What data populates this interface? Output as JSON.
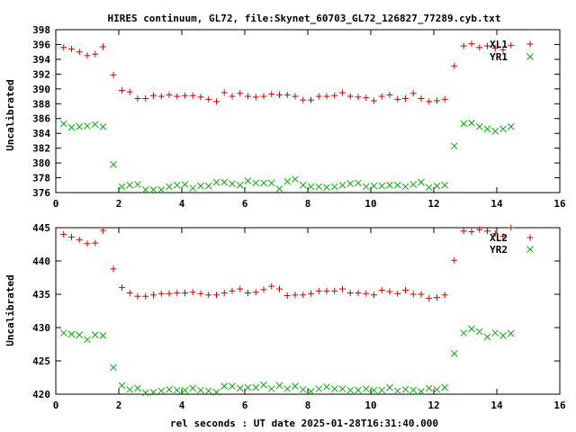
{
  "chart_data": [
    {
      "type": "scatter",
      "title": "HIRES continuum, GL72, file:Skynet_60703_GL72_126827_77289.cyb.txt",
      "xlabel": "",
      "ylabel": "Uncalibrated",
      "xlim": [
        0,
        16
      ],
      "ylim": [
        376,
        398
      ],
      "xticks": [
        0,
        2,
        4,
        6,
        8,
        10,
        12,
        14,
        16
      ],
      "yticks": [
        376,
        378,
        380,
        382,
        384,
        386,
        388,
        390,
        392,
        394,
        396,
        398
      ],
      "legend_position": "top-right",
      "grid": false,
      "series": [
        {
          "name": "XL1",
          "marker": "plus",
          "color": "#cc0000",
          "x": [
            0.25,
            0.5,
            0.75,
            1.0,
            1.25,
            1.5,
            1.83,
            2.1,
            2.35,
            2.6,
            2.85,
            3.1,
            3.35,
            3.6,
            3.85,
            4.1,
            4.35,
            4.6,
            4.85,
            5.1,
            5.35,
            5.6,
            5.85,
            6.1,
            6.35,
            6.6,
            6.85,
            7.1,
            7.35,
            7.6,
            7.85,
            8.1,
            8.35,
            8.6,
            8.85,
            9.1,
            9.35,
            9.6,
            9.85,
            10.1,
            10.35,
            10.6,
            10.85,
            11.1,
            11.35,
            11.6,
            11.85,
            12.1,
            12.35,
            12.65,
            12.95,
            13.2,
            13.45,
            13.7,
            13.95,
            14.2,
            14.45
          ],
          "y": [
            395.6,
            395.4,
            395.0,
            394.5,
            394.7,
            395.7,
            391.9,
            389.8,
            389.6,
            388.7,
            388.7,
            389.1,
            389.0,
            389.2,
            389.0,
            389.1,
            389.1,
            388.9,
            388.6,
            388.3,
            389.5,
            389.0,
            389.4,
            389.0,
            388.9,
            389.0,
            389.3,
            389.2,
            389.2,
            389.0,
            388.5,
            388.5,
            389.0,
            389.0,
            389.1,
            389.5,
            389.0,
            388.9,
            388.8,
            388.4,
            389.0,
            389.2,
            388.6,
            388.7,
            389.4,
            388.7,
            388.3,
            388.4,
            388.6,
            393.1,
            395.8,
            396.1,
            395.6,
            395.8,
            395.5,
            395.3,
            395.9
          ]
        },
        {
          "name": "YR1",
          "marker": "cross",
          "color": "#00aa00",
          "x": [
            0.25,
            0.5,
            0.75,
            1.0,
            1.25,
            1.5,
            1.83,
            2.1,
            2.35,
            2.6,
            2.85,
            3.1,
            3.35,
            3.6,
            3.85,
            4.1,
            4.35,
            4.6,
            4.85,
            5.1,
            5.35,
            5.6,
            5.85,
            6.1,
            6.35,
            6.6,
            6.85,
            7.1,
            7.35,
            7.6,
            7.85,
            8.1,
            8.35,
            8.6,
            8.85,
            9.1,
            9.35,
            9.6,
            9.85,
            10.1,
            10.35,
            10.6,
            10.85,
            11.1,
            11.35,
            11.6,
            11.85,
            12.1,
            12.35,
            12.65,
            12.95,
            13.2,
            13.45,
            13.7,
            13.95,
            14.2,
            14.45
          ],
          "y": [
            385.3,
            384.8,
            384.9,
            385.0,
            385.2,
            384.9,
            379.8,
            376.8,
            377.0,
            377.1,
            376.4,
            376.4,
            376.4,
            376.8,
            377.0,
            377.1,
            376.6,
            376.9,
            376.9,
            377.4,
            377.4,
            377.2,
            377.0,
            377.6,
            377.3,
            377.3,
            377.3,
            376.5,
            377.5,
            377.8,
            377.0,
            376.8,
            376.8,
            376.7,
            376.8,
            377.0,
            377.2,
            377.3,
            376.8,
            376.9,
            376.9,
            377.0,
            377.0,
            376.8,
            377.1,
            377.4,
            376.7,
            376.9,
            377.0,
            382.3,
            385.3,
            385.4,
            384.9,
            384.6,
            384.3,
            384.6,
            384.9
          ]
        }
      ]
    },
    {
      "type": "scatter",
      "title": "",
      "xlabel": "rel seconds : UT date 2025-01-28T16:31:40.000",
      "ylabel": "Uncalibrated",
      "xlim": [
        0,
        16
      ],
      "ylim": [
        420,
        445
      ],
      "xticks": [
        0,
        2,
        4,
        6,
        8,
        10,
        12,
        14,
        16
      ],
      "yticks": [
        420,
        425,
        430,
        435,
        440,
        445
      ],
      "legend_position": "top-right",
      "grid": false,
      "series": [
        {
          "name": "XL2",
          "marker": "plus",
          "color": "#cc0000",
          "x": [
            0.25,
            0.5,
            0.75,
            1.0,
            1.25,
            1.5,
            1.83,
            2.1,
            2.35,
            2.6,
            2.85,
            3.1,
            3.35,
            3.6,
            3.85,
            4.1,
            4.35,
            4.6,
            4.85,
            5.1,
            5.35,
            5.6,
            5.85,
            6.1,
            6.35,
            6.6,
            6.85,
            7.1,
            7.35,
            7.6,
            7.85,
            8.1,
            8.35,
            8.6,
            8.85,
            9.1,
            9.35,
            9.6,
            9.85,
            10.1,
            10.35,
            10.6,
            10.85,
            11.1,
            11.35,
            11.6,
            11.85,
            12.1,
            12.35,
            12.65,
            12.95,
            13.2,
            13.45,
            13.7,
            13.95,
            14.2,
            14.45
          ],
          "y": [
            444.0,
            443.6,
            443.2,
            442.6,
            442.7,
            444.6,
            438.8,
            436.0,
            435.2,
            434.7,
            434.7,
            434.9,
            435.1,
            435.1,
            435.2,
            435.2,
            435.3,
            435.1,
            434.9,
            434.9,
            435.2,
            435.5,
            435.8,
            435.2,
            435.3,
            435.7,
            436.2,
            435.8,
            434.8,
            434.9,
            434.9,
            435.1,
            435.5,
            435.5,
            435.5,
            435.8,
            435.2,
            435.2,
            435.1,
            434.9,
            435.6,
            435.4,
            435.1,
            435.6,
            435.0,
            435.0,
            434.4,
            434.5,
            434.9,
            440.1,
            444.5,
            444.4,
            444.7,
            444.5,
            444.1,
            443.7,
            445.0
          ]
        },
        {
          "name": "YR2",
          "marker": "cross",
          "color": "#00aa00",
          "x": [
            0.25,
            0.5,
            0.75,
            1.0,
            1.25,
            1.5,
            1.83,
            2.1,
            2.35,
            2.6,
            2.85,
            3.1,
            3.35,
            3.6,
            3.85,
            4.1,
            4.35,
            4.6,
            4.85,
            5.1,
            5.35,
            5.6,
            5.85,
            6.1,
            6.35,
            6.6,
            6.85,
            7.1,
            7.35,
            7.6,
            7.85,
            8.1,
            8.35,
            8.6,
            8.85,
            9.1,
            9.35,
            9.6,
            9.85,
            10.1,
            10.35,
            10.6,
            10.85,
            11.1,
            11.35,
            11.6,
            11.85,
            12.1,
            12.35,
            12.65,
            12.95,
            13.2,
            13.45,
            13.7,
            13.95,
            14.2,
            14.45
          ],
          "y": [
            429.2,
            429.0,
            428.9,
            428.2,
            428.9,
            428.8,
            424.0,
            421.3,
            420.7,
            420.9,
            420.2,
            420.3,
            420.5,
            420.7,
            420.6,
            420.6,
            420.9,
            420.6,
            420.5,
            420.3,
            421.2,
            421.2,
            420.9,
            421.0,
            421.0,
            421.4,
            420.8,
            421.3,
            420.8,
            421.2,
            420.7,
            420.4,
            420.8,
            421.1,
            420.8,
            420.8,
            420.6,
            420.6,
            420.8,
            420.6,
            420.6,
            421.0,
            420.5,
            420.7,
            420.6,
            420.4,
            420.9,
            420.7,
            421.0,
            426.1,
            429.2,
            429.8,
            429.4,
            428.6,
            429.2,
            428.8,
            429.1
          ]
        }
      ]
    }
  ]
}
